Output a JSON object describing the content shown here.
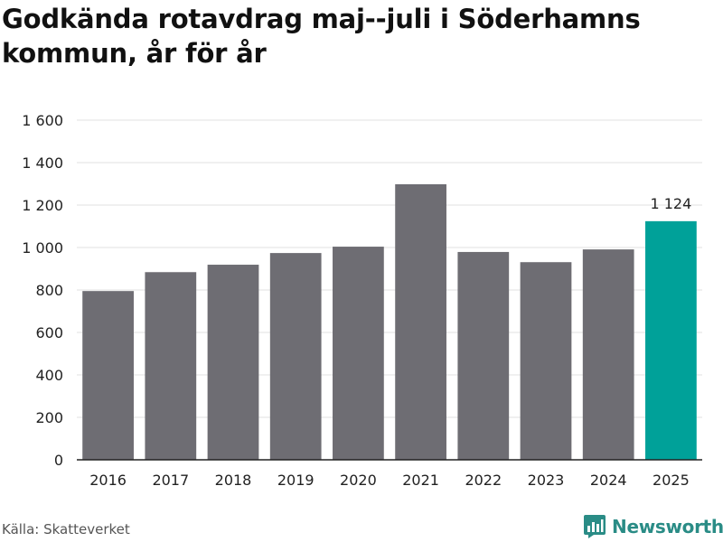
{
  "header": {
    "title": "Godkända rotavdrag maj--juli i Söderhamns kommun, år för år"
  },
  "footer": {
    "source": "Källa: Skatteverket",
    "brand": "Newsworthy",
    "brand_icon": "bar-chart-logo-icon"
  },
  "colors": {
    "bar": "#6e6d73",
    "highlight": "#00a199",
    "grid": "#e2e2e2",
    "axis": "#222222",
    "brand": "#2a8c86"
  },
  "chart_data": {
    "type": "bar",
    "categories": [
      "2016",
      "2017",
      "2018",
      "2019",
      "2020",
      "2021",
      "2022",
      "2023",
      "2024",
      "2025"
    ],
    "values": [
      795,
      884,
      919,
      974,
      1004,
      1298,
      979,
      931,
      991,
      1124
    ],
    "highlight_index": 9,
    "data_labels": [
      {
        "index": 9,
        "text": "1 124"
      }
    ],
    "yticks": [
      0,
      200,
      400,
      600,
      800,
      1000,
      1200,
      1400,
      1600
    ],
    "ytick_labels": [
      "0",
      "200",
      "400",
      "600",
      "800",
      "1 000",
      "1 200",
      "1 400",
      "1 600"
    ],
    "ylim": [
      0,
      1600
    ],
    "grid": true,
    "legend": "none",
    "xlabel": "",
    "ylabel": ""
  }
}
